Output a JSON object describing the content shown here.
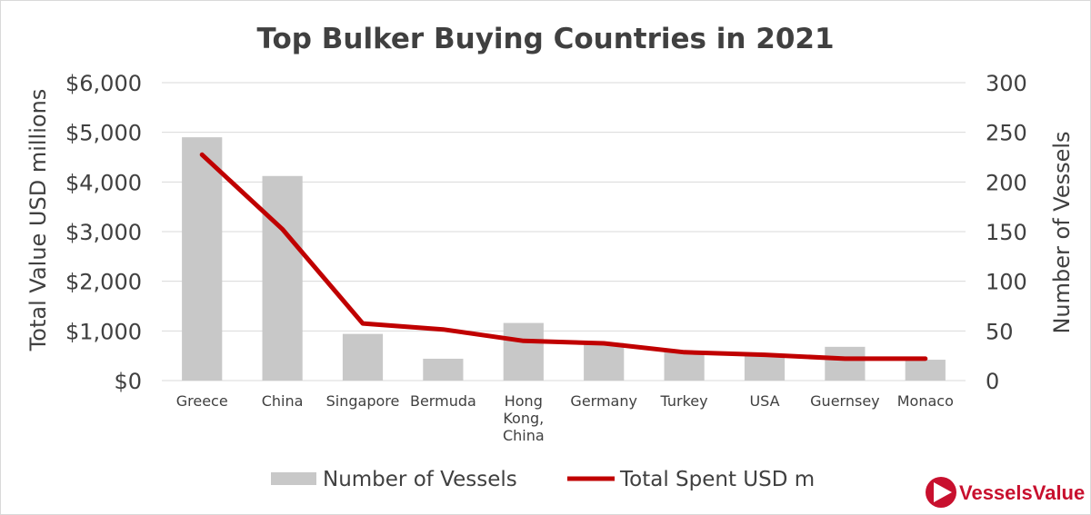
{
  "chart_data": {
    "type": "bar",
    "title": "Top Bulker Buying Countries in 2021",
    "categories": [
      "Greece",
      "China",
      "Singapore",
      "Bermuda",
      "Hong Kong, China",
      "Germany",
      "Turkey",
      "USA",
      "Guernsey",
      "Monaco"
    ],
    "category_lines": [
      [
        "Greece"
      ],
      [
        "China"
      ],
      [
        "Singapore"
      ],
      [
        "Bermuda"
      ],
      [
        "Hong",
        "Kong,",
        "China"
      ],
      [
        "Germany"
      ],
      [
        "Turkey"
      ],
      [
        "USA"
      ],
      [
        "Guernsey"
      ],
      [
        "Monaco"
      ]
    ],
    "series": [
      {
        "name": "Number of Vessels",
        "type": "bar",
        "axis": "right",
        "color": "#c8c8c8",
        "values": [
          245,
          206,
          47,
          22,
          58,
          38,
          30,
          27,
          34,
          21
        ]
      },
      {
        "name": "Total Spent USD m",
        "type": "line",
        "axis": "left",
        "color": "#c00000",
        "values": [
          4550,
          3050,
          1150,
          1030,
          800,
          750,
          570,
          520,
          440,
          440
        ]
      }
    ],
    "y_left": {
      "label": "Total Value USD millions",
      "range": [
        0,
        6000
      ],
      "ticks": [
        0,
        1000,
        2000,
        3000,
        4000,
        5000,
        6000
      ],
      "tick_labels": [
        "$0",
        "$1,000",
        "$2,000",
        "$3,000",
        "$4,000",
        "$5,000",
        "$6,000"
      ]
    },
    "y_right": {
      "label": "Number of Vessels",
      "range": [
        0,
        300
      ],
      "ticks": [
        0,
        50,
        100,
        150,
        200,
        250,
        300
      ],
      "tick_labels": [
        "0",
        "50",
        "100",
        "150",
        "200",
        "250",
        "300"
      ]
    },
    "grid": true,
    "legend_position": "bottom"
  },
  "colors": {
    "text": "#404040",
    "grid": "#d9d9d9",
    "bar": "#c8c8c8",
    "line": "#c00000",
    "brand": "#c8102e"
  },
  "branding": {
    "logo_text": "VesselsValue",
    "logo_icon": "vesselsvalue-logo-icon"
  }
}
